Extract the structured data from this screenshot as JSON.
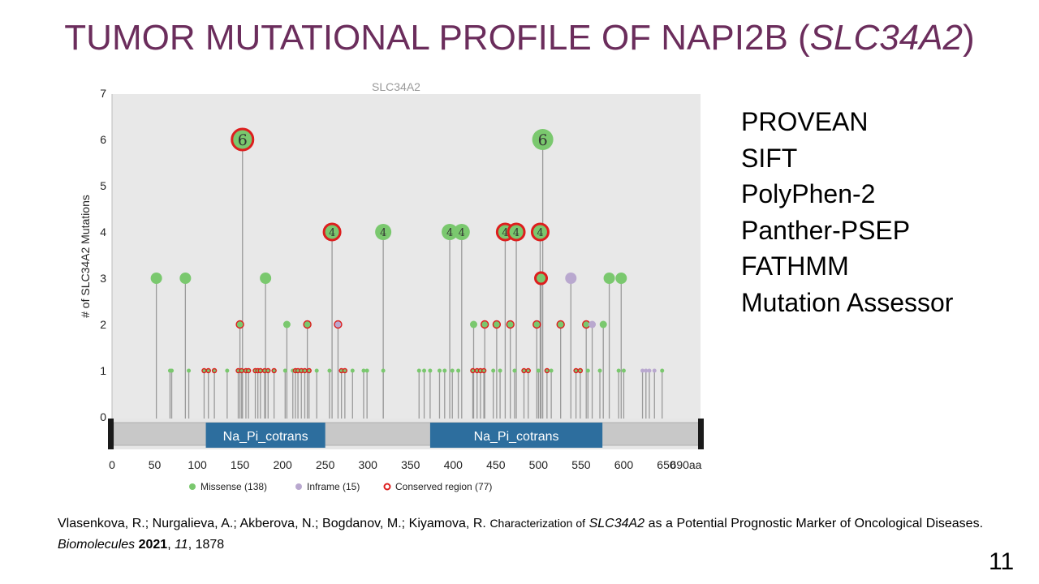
{
  "slide": {
    "title_main": "TUMOR MUTATIONAL PROFILE OF NAPI2B (",
    "title_gene": "SLC34A2",
    "title_close": ")",
    "page_number": "11"
  },
  "tools": [
    "PROVEAN",
    "SIFT",
    "PolyPhen-2",
    "Panther-PSEP",
    "FATHMM",
    "Mutation Assessor"
  ],
  "citation": {
    "authors": "Vlasenkova, R.; Nurgalieva, A.; Akberova, N.; Bogdanov, M.; Kiyamova, R.",
    "title_pre": "Characterization of",
    "title_gene": "SLC34A2",
    "title_post": "as a Potential Prognostic Marker of Oncological Diseases.",
    "journal": "Biomolecules",
    "year": "2021",
    "volume": "11",
    "pages": ", 1878"
  },
  "chart_data": {
    "type": "scatter",
    "subtype": "lollipop",
    "title": "SLC34A2",
    "ylabel": "# of SLC34A2 Mutations",
    "xlim": [
      0,
      690
    ],
    "ylim": [
      0,
      7
    ],
    "x_ticks": [
      "0",
      "50",
      "100",
      "150",
      "200",
      "250",
      "300",
      "350",
      "400",
      "450",
      "500",
      "550",
      "600",
      "650",
      "690aa"
    ],
    "y_ticks": [
      "0",
      "1",
      "2",
      "3",
      "4",
      "5",
      "6",
      "7"
    ],
    "grid": false,
    "legend_position": "bottom",
    "colors": {
      "missense": "#7ac86e",
      "inframe": "#b9a8cf",
      "conserved": "#dd1e1e",
      "domain": "#2d6e9e",
      "plot_bg": "#e8e8e8"
    },
    "legend": [
      {
        "key": "missense",
        "label": "Missense (138)"
      },
      {
        "key": "inframe",
        "label": "Inframe (15)"
      },
      {
        "key": "conserved",
        "label": "Conserved region (77)"
      }
    ],
    "domains": [
      {
        "label": "Na_Pi_cotrans",
        "start": 110,
        "end": 250
      },
      {
        "label": "Na_Pi_cotrans",
        "start": 373,
        "end": 575
      }
    ],
    "mutations": [
      {
        "pos": 52,
        "count": 3,
        "type": "missense"
      },
      {
        "pos": 86,
        "count": 3,
        "type": "missense"
      },
      {
        "pos": 153,
        "count": 6,
        "type": "missense",
        "conserved": true,
        "label": "6"
      },
      {
        "pos": 180,
        "count": 3,
        "type": "missense"
      },
      {
        "pos": 150,
        "count": 2,
        "type": "missense",
        "conserved": true
      },
      {
        "pos": 205,
        "count": 2,
        "type": "missense"
      },
      {
        "pos": 229,
        "count": 2,
        "type": "missense",
        "conserved": true
      },
      {
        "pos": 258,
        "count": 4,
        "type": "missense",
        "conserved": true,
        "label": "4"
      },
      {
        "pos": 265,
        "count": 2,
        "type": "inframe",
        "conserved": true
      },
      {
        "pos": 318,
        "count": 4,
        "type": "missense",
        "label": "4"
      },
      {
        "pos": 396,
        "count": 4,
        "type": "missense",
        "label": "4"
      },
      {
        "pos": 410,
        "count": 4,
        "type": "missense",
        "label": "4"
      },
      {
        "pos": 424,
        "count": 2,
        "type": "missense"
      },
      {
        "pos": 437,
        "count": 2,
        "type": "missense",
        "conserved": true
      },
      {
        "pos": 451,
        "count": 2,
        "type": "missense",
        "conserved": true
      },
      {
        "pos": 461,
        "count": 4,
        "type": "missense",
        "conserved": true,
        "label": "4"
      },
      {
        "pos": 467,
        "count": 2,
        "type": "missense",
        "conserved": true
      },
      {
        "pos": 474,
        "count": 4,
        "type": "missense",
        "conserved": true,
        "label": "4"
      },
      {
        "pos": 498,
        "count": 2,
        "type": "missense",
        "conserved": true
      },
      {
        "pos": 505,
        "count": 6,
        "type": "missense",
        "label": "6"
      },
      {
        "pos": 502,
        "count": 4,
        "type": "missense",
        "conserved": true,
        "label": "4"
      },
      {
        "pos": 503,
        "count": 3,
        "type": "missense",
        "conserved": true
      },
      {
        "pos": 526,
        "count": 2,
        "type": "missense",
        "conserved": true
      },
      {
        "pos": 538,
        "count": 3,
        "type": "inframe"
      },
      {
        "pos": 556,
        "count": 2,
        "type": "missense",
        "conserved": true
      },
      {
        "pos": 563,
        "count": 2,
        "type": "inframe"
      },
      {
        "pos": 576,
        "count": 2,
        "type": "missense"
      },
      {
        "pos": 583,
        "count": 3,
        "type": "missense"
      },
      {
        "pos": 597,
        "count": 3,
        "type": "missense"
      },
      {
        "pos": 68,
        "count": 1,
        "type": "missense"
      },
      {
        "pos": 70,
        "count": 1,
        "type": "missense"
      },
      {
        "pos": 90,
        "count": 1,
        "type": "missense"
      },
      {
        "pos": 108,
        "count": 1,
        "type": "missense",
        "conserved": true
      },
      {
        "pos": 113,
        "count": 1,
        "type": "missense",
        "conserved": true
      },
      {
        "pos": 120,
        "count": 1,
        "type": "missense",
        "conserved": true
      },
      {
        "pos": 135,
        "count": 1,
        "type": "missense"
      },
      {
        "pos": 148,
        "count": 1,
        "type": "missense",
        "conserved": true
      },
      {
        "pos": 152,
        "count": 1,
        "type": "missense",
        "conserved": true
      },
      {
        "pos": 157,
        "count": 1,
        "type": "missense",
        "conserved": true
      },
      {
        "pos": 160,
        "count": 1,
        "type": "missense",
        "conserved": true
      },
      {
        "pos": 168,
        "count": 1,
        "type": "missense",
        "conserved": true
      },
      {
        "pos": 171,
        "count": 1,
        "type": "missense",
        "conserved": true
      },
      {
        "pos": 174,
        "count": 1,
        "type": "missense",
        "conserved": true
      },
      {
        "pos": 179,
        "count": 1,
        "type": "missense",
        "conserved": true
      },
      {
        "pos": 183,
        "count": 1,
        "type": "missense",
        "conserved": true
      },
      {
        "pos": 190,
        "count": 1,
        "type": "missense",
        "conserved": true
      },
      {
        "pos": 203,
        "count": 1,
        "type": "missense"
      },
      {
        "pos": 212,
        "count": 1,
        "type": "missense"
      },
      {
        "pos": 215,
        "count": 1,
        "type": "missense",
        "conserved": true
      },
      {
        "pos": 218,
        "count": 1,
        "type": "missense",
        "conserved": true
      },
      {
        "pos": 222,
        "count": 1,
        "type": "missense",
        "conserved": true
      },
      {
        "pos": 226,
        "count": 1,
        "type": "missense",
        "conserved": true
      },
      {
        "pos": 231,
        "count": 1,
        "type": "missense",
        "conserved": true
      },
      {
        "pos": 240,
        "count": 1,
        "type": "missense"
      },
      {
        "pos": 255,
        "count": 1,
        "type": "missense"
      },
      {
        "pos": 269,
        "count": 1,
        "type": "missense",
        "conserved": true
      },
      {
        "pos": 273,
        "count": 1,
        "type": "missense",
        "conserved": true
      },
      {
        "pos": 282,
        "count": 1,
        "type": "missense"
      },
      {
        "pos": 295,
        "count": 1,
        "type": "missense"
      },
      {
        "pos": 299,
        "count": 1,
        "type": "missense"
      },
      {
        "pos": 318,
        "count": 1,
        "type": "missense"
      },
      {
        "pos": 360,
        "count": 1,
        "type": "missense"
      },
      {
        "pos": 366,
        "count": 1,
        "type": "missense"
      },
      {
        "pos": 373,
        "count": 1,
        "type": "missense"
      },
      {
        "pos": 384,
        "count": 1,
        "type": "missense"
      },
      {
        "pos": 390,
        "count": 1,
        "type": "missense"
      },
      {
        "pos": 399,
        "count": 1,
        "type": "missense"
      },
      {
        "pos": 406,
        "count": 1,
        "type": "missense"
      },
      {
        "pos": 423,
        "count": 1,
        "type": "missense",
        "conserved": true
      },
      {
        "pos": 428,
        "count": 1,
        "type": "missense",
        "conserved": true
      },
      {
        "pos": 432,
        "count": 1,
        "type": "missense",
        "conserved": true
      },
      {
        "pos": 436,
        "count": 1,
        "type": "missense",
        "conserved": true
      },
      {
        "pos": 447,
        "count": 1,
        "type": "missense"
      },
      {
        "pos": 455,
        "count": 1,
        "type": "missense"
      },
      {
        "pos": 472,
        "count": 1,
        "type": "missense"
      },
      {
        "pos": 483,
        "count": 1,
        "type": "missense",
        "conserved": true
      },
      {
        "pos": 488,
        "count": 1,
        "type": "missense",
        "conserved": true
      },
      {
        "pos": 500,
        "count": 1,
        "type": "missense"
      },
      {
        "pos": 510,
        "count": 1,
        "type": "missense",
        "conserved": true
      },
      {
        "pos": 515,
        "count": 1,
        "type": "missense"
      },
      {
        "pos": 544,
        "count": 1,
        "type": "missense",
        "conserved": true
      },
      {
        "pos": 549,
        "count": 1,
        "type": "missense",
        "conserved": true
      },
      {
        "pos": 558,
        "count": 1,
        "type": "missense"
      },
      {
        "pos": 572,
        "count": 1,
        "type": "missense"
      },
      {
        "pos": 594,
        "count": 1,
        "type": "missense"
      },
      {
        "pos": 600,
        "count": 1,
        "type": "missense"
      },
      {
        "pos": 622,
        "count": 1,
        "type": "inframe"
      },
      {
        "pos": 626,
        "count": 1,
        "type": "inframe"
      },
      {
        "pos": 630,
        "count": 1,
        "type": "inframe"
      },
      {
        "pos": 636,
        "count": 1,
        "type": "inframe"
      },
      {
        "pos": 645,
        "count": 1,
        "type": "missense"
      }
    ]
  }
}
